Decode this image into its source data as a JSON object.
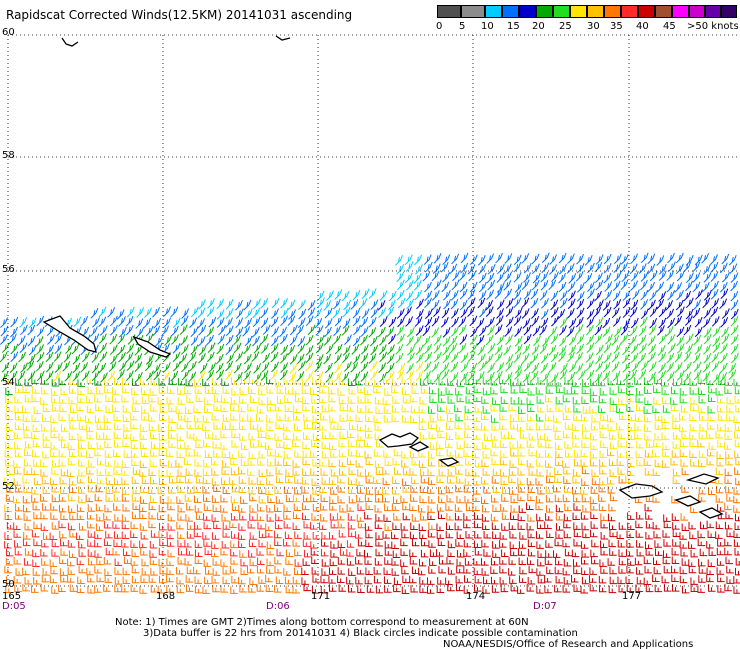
{
  "title": "Rapidscat Corrected Winds(12.5KM) 20141031 ascending",
  "legend": {
    "colors": [
      "#505050",
      "#8c8c8c",
      "#00ccff",
      "#0070ff",
      "#0000cc",
      "#00aa00",
      "#22dd22",
      "#ffe600",
      "#ffc000",
      "#ff7700",
      "#ff2a2a",
      "#cc0000",
      "#a05030",
      "#ff00ff",
      "#cc00cc",
      "#6600aa",
      "#330066"
    ],
    "labels": [
      "0",
      "5",
      "10",
      "15",
      "20",
      "25",
      "30",
      "35",
      "40",
      "45",
      ">50 knots"
    ]
  },
  "map": {
    "lat_labels": [
      "60",
      "58",
      "56",
      "54",
      "52",
      "50"
    ],
    "lon_labels": [
      "165",
      "168",
      "171",
      "174",
      "177"
    ],
    "times": [
      "D:05",
      "D:06",
      "D:07"
    ]
  },
  "notes": {
    "line1": "Note: 1) Times are GMT 2)Times along bottom correspond to measurement at 60N",
    "line2": "3)Data buffer is 22 hrs from 20141031 4) Black circles indicate possible contamination",
    "credit": "NOAA/NESDIS/Office of Research and Applications"
  }
}
